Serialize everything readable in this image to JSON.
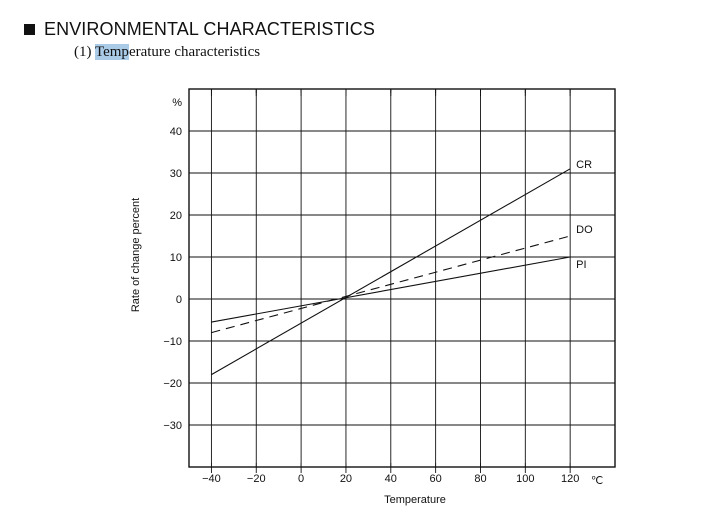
{
  "header": {
    "title": "ENVIRONMENTAL CHARACTERISTICS",
    "subtitle_number": "(1)",
    "subtitle_highlight": "Temp",
    "subtitle_rest": "erature characteristics"
  },
  "chart_data": {
    "type": "line",
    "title": "",
    "xlabel": "Temperature",
    "ylabel": "Rate of change percent",
    "x_unit": "℃",
    "y_unit": "%",
    "xlim": [
      -50,
      140
    ],
    "ylim": [
      -40,
      50
    ],
    "x_ticks": [
      -40,
      -20,
      0,
      20,
      40,
      60,
      80,
      100,
      120
    ],
    "x_tick_labels": [
      "−40",
      "−20",
      "0",
      "20",
      "40",
      "60",
      "80",
      "100",
      "120"
    ],
    "y_ticks": [
      40,
      30,
      20,
      10,
      0,
      -10,
      -20,
      -30
    ],
    "y_tick_labels": [
      "40",
      "30",
      "20",
      "10",
      "0",
      "−10",
      "−20",
      "−30"
    ],
    "grid": true,
    "series": [
      {
        "name": "CR",
        "x": [
          -40,
          120
        ],
        "y": [
          -18,
          31
        ],
        "dash": false
      },
      {
        "name": "DO",
        "x": [
          -40,
          120
        ],
        "y": [
          -8,
          15
        ],
        "dash": true
      },
      {
        "name": "PI",
        "x": [
          -40,
          120
        ],
        "y": [
          -5.5,
          10
        ],
        "dash": false
      }
    ]
  }
}
